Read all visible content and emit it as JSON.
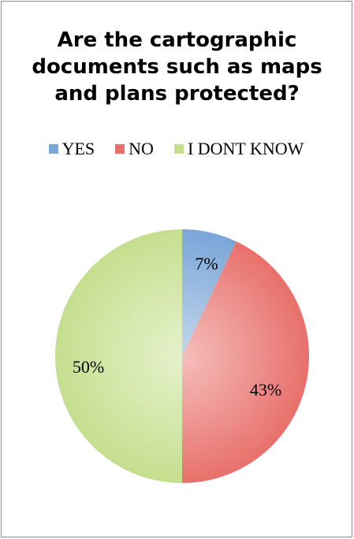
{
  "chart_data": {
    "type": "pie",
    "title_lines": [
      "Are the cartographic",
      "documents such as maps",
      "and plans protected?"
    ],
    "slices": [
      {
        "name": "YES",
        "value": 7,
        "label": "7%",
        "color": "#7aa6d8"
      },
      {
        "name": "NO",
        "value": 43,
        "label": "43%",
        "color": "#e8706b"
      },
      {
        "name": "I DONT KNOW",
        "value": 50,
        "label": "50%",
        "color": "#c5df8e"
      }
    ],
    "legend_position": "top",
    "start_angle_deg": 0,
    "direction": "clockwise"
  }
}
